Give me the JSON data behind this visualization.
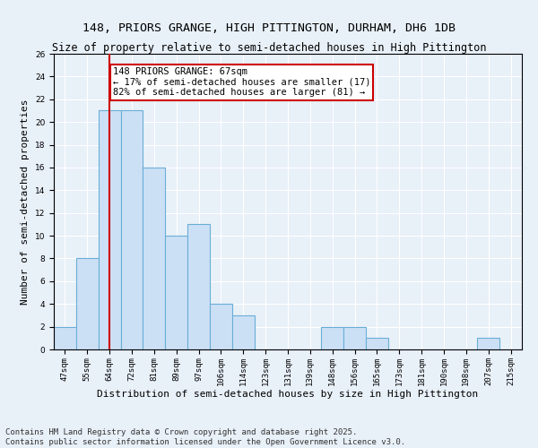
{
  "title": "148, PRIORS GRANGE, HIGH PITTINGTON, DURHAM, DH6 1DB",
  "subtitle": "Size of property relative to semi-detached houses in High Pittington",
  "xlabel": "Distribution of semi-detached houses by size in High Pittington",
  "ylabel": "Number of semi-detached properties",
  "categories": [
    "47sqm",
    "55sqm",
    "64sqm",
    "72sqm",
    "81sqm",
    "89sqm",
    "97sqm",
    "106sqm",
    "114sqm",
    "123sqm",
    "131sqm",
    "139sqm",
    "148sqm",
    "156sqm",
    "165sqm",
    "173sqm",
    "181sqm",
    "190sqm",
    "198sqm",
    "207sqm",
    "215sqm"
  ],
  "values": [
    2,
    8,
    21,
    21,
    16,
    10,
    11,
    4,
    3,
    0,
    0,
    0,
    2,
    2,
    1,
    0,
    0,
    0,
    0,
    1,
    0
  ],
  "bar_color": "#cce0f5",
  "bar_edge_color": "#6aaed6",
  "vline_x": 2,
  "vline_color": "#cc0000",
  "annotation_text": "148 PRIORS GRANGE: 67sqm\n← 17% of semi-detached houses are smaller (17)\n82% of semi-detached houses are larger (81) →",
  "annotation_box_color": "#ffffff",
  "annotation_box_edge_color": "#cc0000",
  "ylim": [
    0,
    26
  ],
  "yticks": [
    0,
    2,
    4,
    6,
    8,
    10,
    12,
    14,
    16,
    18,
    20,
    22,
    24,
    26
  ],
  "background_color": "#e8f0f8",
  "grid_color": "#ffffff",
  "footer_text": "Contains HM Land Registry data © Crown copyright and database right 2025.\nContains public sector information licensed under the Open Government Licence v3.0.",
  "title_fontsize": 9.5,
  "subtitle_fontsize": 8.5,
  "xlabel_fontsize": 8,
  "ylabel_fontsize": 8,
  "tick_fontsize": 6.5,
  "annotation_fontsize": 7.5,
  "footer_fontsize": 6.5
}
